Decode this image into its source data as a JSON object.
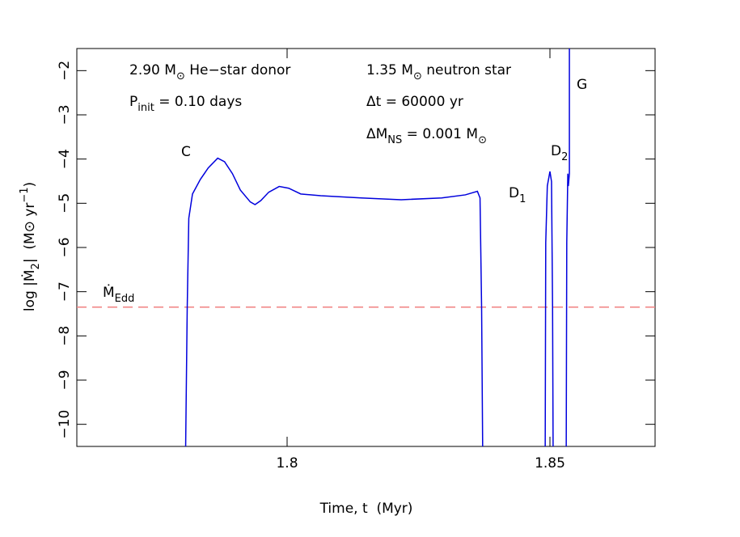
{
  "chart_data": {
    "type": "line",
    "xlabel": [
      {
        "t": "Time, t  (Myr)"
      }
    ],
    "ylabel": [
      {
        "t": "log |Ṁ"
      },
      {
        "sub": "2"
      },
      {
        "t": "|  (M⊙ yr"
      },
      {
        "sup": "−1"
      },
      {
        "t": ")"
      }
    ],
    "xlim": [
      1.76,
      1.87
    ],
    "ylim": [
      -10.5,
      -1.5
    ],
    "xticks": [
      1.8,
      1.85
    ],
    "yticks": [
      {
        "value": -10,
        "label": "−10"
      },
      {
        "value": -9,
        "label": "−9"
      },
      {
        "value": -8,
        "label": "−8"
      },
      {
        "value": -7,
        "label": "−7"
      },
      {
        "value": -6,
        "label": "−6"
      },
      {
        "value": -5,
        "label": "−5"
      },
      {
        "value": -4,
        "label": "−4"
      },
      {
        "value": -3,
        "label": "−3"
      },
      {
        "value": -2,
        "label": "−2"
      }
    ],
    "eddington_limit": -7.35,
    "eddington_color": "#f08080",
    "series": [
      {
        "color": "#0000dd",
        "x": [
          1.7807,
          1.781,
          1.7813,
          1.782,
          1.7835,
          1.785,
          1.7868,
          1.7881,
          1.7896,
          1.7911,
          1.793,
          1.7939,
          1.795,
          1.7965,
          1.7985,
          1.8003,
          1.8026,
          1.8064,
          1.8141,
          1.8217,
          1.8294,
          1.8339,
          1.8362,
          1.8367,
          1.837,
          1.8372,
          null,
          1.8491,
          1.8492,
          1.8495,
          1.85,
          1.8503,
          1.8505,
          1.8506,
          null,
          1.8531,
          1.8532,
          1.8534,
          1.8535,
          1.8537,
          1.8537
        ],
        "values": [
          -10.5,
          -7.36,
          -5.34,
          -4.79,
          -4.46,
          -4.2,
          -3.98,
          -4.06,
          -4.33,
          -4.7,
          -4.97,
          -5.03,
          -4.94,
          -4.75,
          -4.62,
          -4.66,
          -4.79,
          -4.83,
          -4.88,
          -4.92,
          -4.88,
          -4.81,
          -4.73,
          -4.88,
          -7.36,
          -10.5,
          null,
          -10.5,
          -5.89,
          -4.61,
          -4.28,
          -4.51,
          -7.36,
          -10.5,
          null,
          -10.5,
          -5.89,
          -4.33,
          -4.61,
          -4.33,
          -1.5
        ]
      }
    ],
    "annotations": [
      {
        "parts": [
          {
            "t": "2.90 M"
          },
          {
            "sub": "⊙"
          },
          {
            "t": " He−star donor"
          }
        ]
      },
      {
        "parts": [
          {
            "t": "P"
          },
          {
            "sub": "init"
          },
          {
            "t": " = 0.10 days"
          }
        ]
      },
      {
        "parts": [
          {
            "t": "1.35 M"
          },
          {
            "sub": "⊙"
          },
          {
            "t": " neutron star"
          }
        ]
      },
      {
        "parts": [
          {
            "t": "Δt = 60000 yr"
          }
        ]
      },
      {
        "parts": [
          {
            "t": "ΔM"
          },
          {
            "sub": "NS"
          },
          {
            "t": " = 0.001 M"
          },
          {
            "sub": "⊙"
          }
        ]
      },
      {
        "parts": [
          {
            "t": "C"
          }
        ]
      },
      {
        "parts": [
          {
            "t": "D"
          },
          {
            "sub": "1"
          }
        ]
      },
      {
        "parts": [
          {
            "t": "D"
          },
          {
            "sub": "2"
          }
        ]
      },
      {
        "parts": [
          {
            "t": "G"
          }
        ]
      },
      {
        "parts": [
          {
            "t": "Ṁ"
          },
          {
            "sub": "Edd"
          }
        ]
      }
    ]
  }
}
